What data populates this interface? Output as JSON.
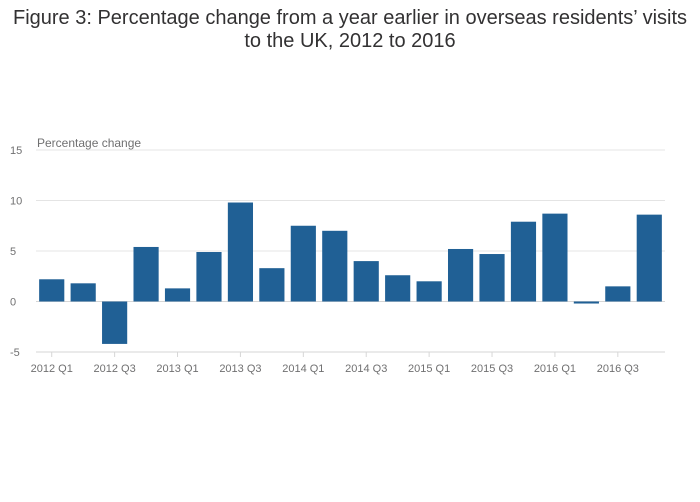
{
  "chart_data": {
    "type": "bar",
    "title_lines": [
      "Figure 3: Percentage change from a year earlier in overseas residents’ visits",
      "to the UK, 2012 to 2016"
    ],
    "ylabel": "Percentage change",
    "xlabel": "",
    "ylim": [
      -5,
      15
    ],
    "yticks": [
      -5,
      0,
      5,
      10,
      15
    ],
    "grid": true,
    "color": "#206095",
    "categories": [
      "2012 Q1",
      "2012 Q2",
      "2012 Q3",
      "2012 Q4",
      "2013 Q1",
      "2013 Q2",
      "2013 Q3",
      "2013 Q4",
      "2014 Q1",
      "2014 Q2",
      "2014 Q3",
      "2014 Q4",
      "2015 Q1",
      "2015 Q2",
      "2015 Q3",
      "2015 Q4",
      "2016 Q1",
      "2016 Q2",
      "2016 Q3",
      "2016 Q4"
    ],
    "xtick_labels": [
      "2012 Q1",
      "2012 Q3",
      "2013 Q1",
      "2013 Q3",
      "2014 Q1",
      "2014 Q3",
      "2015 Q1",
      "2015 Q3",
      "2016 Q1",
      "2016 Q3"
    ],
    "values": [
      2.2,
      1.8,
      -4.2,
      5.4,
      1.3,
      4.9,
      9.8,
      3.3,
      7.5,
      7.0,
      4.0,
      2.6,
      2.0,
      5.2,
      4.7,
      7.9,
      8.7,
      -0.2,
      1.5,
      8.6
    ]
  }
}
